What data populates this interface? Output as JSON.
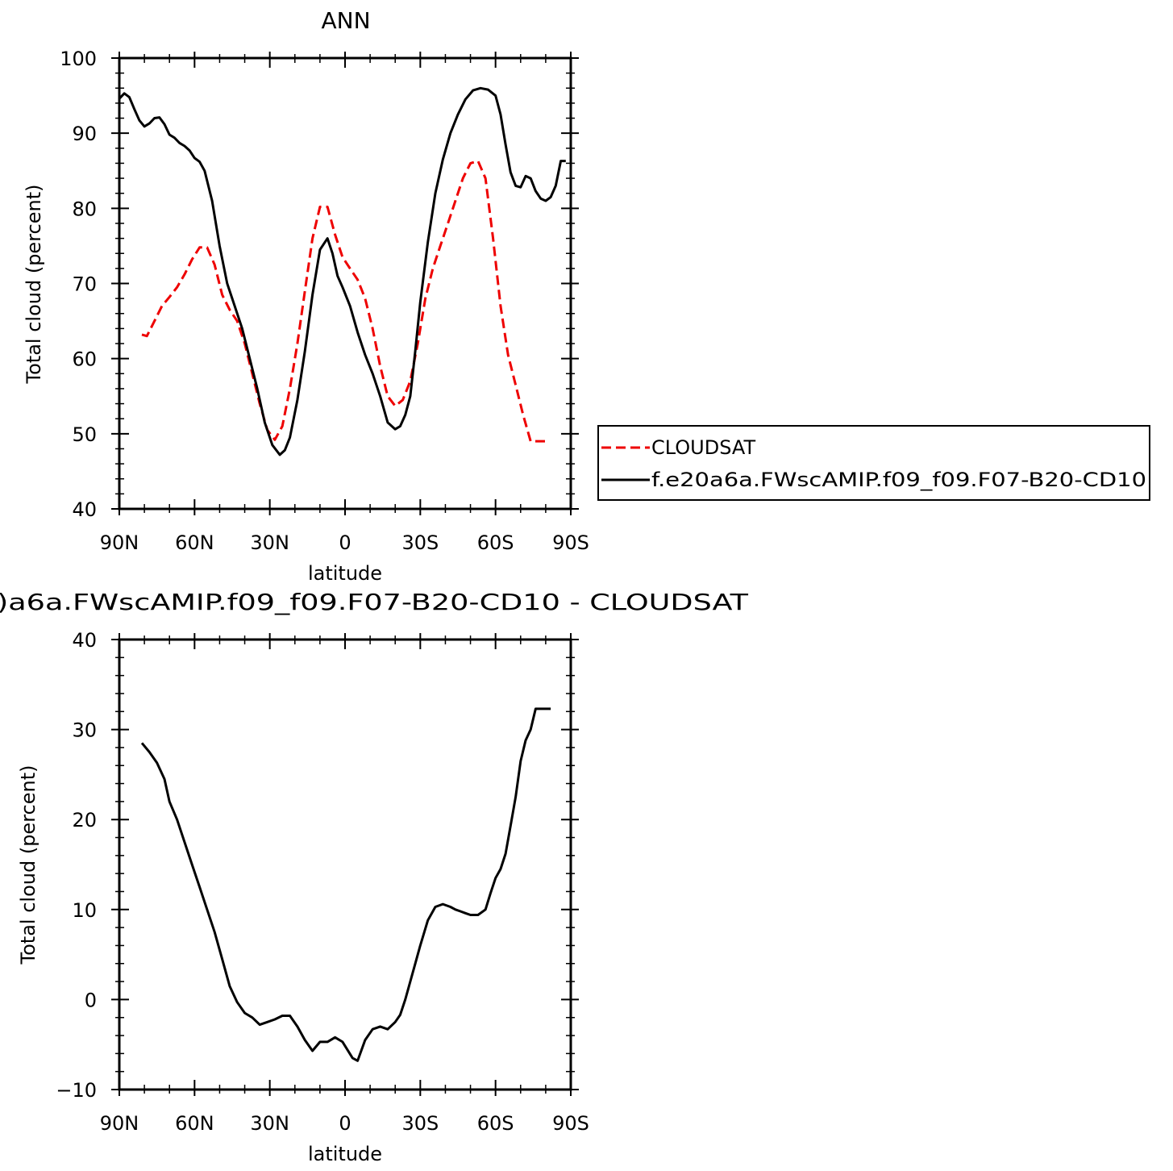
{
  "chart_data": [
    {
      "type": "line",
      "title": "ANN",
      "xlabel": "latitude",
      "ylabel": "Total cloud (percent)",
      "xlim": [
        90,
        -90
      ],
      "ylim": [
        40,
        100
      ],
      "x_ticks": [
        90,
        60,
        30,
        0,
        -30,
        -60,
        -90
      ],
      "x_tick_labels": [
        "90N",
        "60N",
        "30N",
        "0",
        "30S",
        "60S",
        "90S"
      ],
      "y_ticks": [
        40,
        50,
        60,
        70,
        80,
        90,
        100
      ],
      "y_tick_labels": [
        "40",
        "50",
        "60",
        "70",
        "80",
        "90",
        "100"
      ],
      "legend": {
        "position": "right",
        "entries": [
          {
            "label": "CLOUDSAT",
            "color": "#ee0000",
            "style": "dashed"
          },
          {
            "label": "f.e20a6a.FWscAMIP.f09_f09.F07-B20-CD10",
            "color": "#000000",
            "style": "solid"
          }
        ]
      },
      "series": [
        {
          "name": "CLOUDSAT",
          "color": "#ee0000",
          "style": "dashed",
          "x": [
            81,
            79,
            76,
            73,
            70,
            67,
            64,
            61,
            58,
            55,
            52,
            49,
            46,
            43,
            40,
            37,
            34,
            31,
            28,
            25,
            22,
            19,
            16,
            13,
            10,
            7,
            4,
            1,
            -2,
            -5,
            -8,
            -11,
            -14,
            -17,
            -20,
            -23,
            -26,
            -29,
            -32,
            -35,
            -38,
            -41,
            -44,
            -47,
            -50,
            -53,
            -56,
            -59,
            -62,
            -65,
            -68,
            -71,
            -74,
            -77,
            -80,
            -81
          ],
          "y": [
            63.2,
            63,
            65,
            67,
            68.2,
            69.5,
            71.2,
            73.2,
            74.8,
            74.8,
            72.5,
            68.5,
            66.5,
            65,
            62,
            58,
            54,
            50.5,
            49.2,
            51,
            56,
            62,
            69,
            76,
            80.2,
            80.2,
            76.5,
            73.5,
            72,
            70.5,
            68,
            64,
            59,
            55,
            53.7,
            54.5,
            57,
            62,
            68,
            72,
            75,
            78,
            81,
            84,
            86,
            86.3,
            84,
            76,
            67,
            60.5,
            56.5,
            52.5,
            49,
            49,
            49,
            49
          ]
        },
        {
          "name": "f.e20a6a.FWscAMIP.f09_f09.F07-B20-CD10",
          "color": "#000000",
          "style": "solid",
          "x": [
            90,
            88,
            86,
            84,
            82,
            80,
            78,
            76,
            74,
            72,
            70,
            68,
            66,
            64,
            62,
            60,
            58,
            56,
            53,
            50,
            47,
            44,
            41,
            38,
            35,
            32,
            29,
            26,
            24,
            22,
            19,
            16,
            13,
            10,
            7,
            5,
            3,
            1,
            -2,
            -5,
            -8,
            -11,
            -14,
            -17,
            -20,
            -22,
            -24,
            -26,
            -28,
            -30,
            -33,
            -36,
            -39,
            -42,
            -45,
            -48,
            -51,
            -54,
            -57,
            -60,
            -62,
            -64,
            -66,
            -68,
            -70,
            -72,
            -74,
            -76,
            -78,
            -80,
            -82,
            -84,
            -86,
            -88
          ],
          "y": [
            94.6,
            95.3,
            94.8,
            93.2,
            91.7,
            90.9,
            91.3,
            92,
            92.1,
            91.2,
            89.8,
            89.4,
            88.7,
            88.3,
            87.7,
            86.7,
            86.2,
            85,
            81,
            75,
            70,
            67,
            64,
            60,
            56,
            51.5,
            48.5,
            47.2,
            47.8,
            49.5,
            54.5,
            61,
            68.5,
            74.5,
            76,
            74,
            71,
            69.5,
            67,
            63.5,
            60.5,
            58,
            55,
            51.5,
            50.6,
            51,
            52.5,
            55,
            61,
            67.5,
            75.5,
            82,
            86.5,
            90,
            92.5,
            94.5,
            95.7,
            96,
            95.8,
            95,
            92.5,
            88.5,
            84.8,
            83,
            82.8,
            84.3,
            84,
            82.3,
            81.3,
            81,
            81.5,
            83,
            86.3,
            86.3
          ]
        }
      ]
    },
    {
      "type": "line",
      "title": ")a6a.FWscAMIP.f09_f09.F07-B20-CD10  -  CLOUDSAT",
      "xlabel": "latitude",
      "ylabel": "Total cloud (percent)",
      "xlim": [
        90,
        -90
      ],
      "ylim": [
        -10,
        40
      ],
      "x_ticks": [
        90,
        60,
        30,
        0,
        -30,
        -60,
        -90
      ],
      "x_tick_labels": [
        "90N",
        "60N",
        "30N",
        "0",
        "30S",
        "60S",
        "90S"
      ],
      "y_ticks": [
        -10,
        0,
        10,
        20,
        30,
        40
      ],
      "y_tick_labels": [
        "−10",
        "0",
        "10",
        "20",
        "30",
        "40"
      ],
      "series": [
        {
          "color": "#000000",
          "style": "solid",
          "x": [
            81,
            78,
            75,
            72,
            70,
            67,
            64,
            61,
            58,
            55,
            52,
            49,
            46,
            43,
            40,
            37,
            34,
            31,
            28,
            25,
            22,
            19,
            16,
            13,
            10,
            7,
            4,
            1,
            -1,
            -3,
            -5,
            -8,
            -11,
            -14,
            -17,
            -20,
            -22,
            -24,
            -26,
            -28,
            -30,
            -33,
            -36,
            -39,
            -42,
            -44,
            -46,
            -48,
            -50,
            -53,
            -56,
            -58,
            -60,
            -62,
            -64,
            -66,
            -68,
            -70,
            -72,
            -74,
            -76,
            -78,
            -80,
            -82
          ],
          "y": [
            28.5,
            27.5,
            26.3,
            24.5,
            22,
            20,
            17.5,
            15,
            12.5,
            10,
            7.5,
            4.5,
            1.5,
            -0.3,
            -1.5,
            -2,
            -2.8,
            -2.5,
            -2.2,
            -1.8,
            -1.8,
            -3,
            -4.5,
            -5.7,
            -4.7,
            -4.7,
            -4.2,
            -4.7,
            -5.6,
            -6.5,
            -6.8,
            -4.5,
            -3.3,
            -3,
            -3.3,
            -2.5,
            -1.7,
            0,
            2,
            4,
            6,
            8.8,
            10.3,
            10.6,
            10.3,
            10,
            9.8,
            9.6,
            9.4,
            9.4,
            10,
            11.8,
            13.5,
            14.5,
            16.2,
            19.3,
            22.5,
            26.5,
            28.8,
            30,
            32.3,
            32.3,
            32.3,
            32.3
          ]
        }
      ]
    }
  ]
}
